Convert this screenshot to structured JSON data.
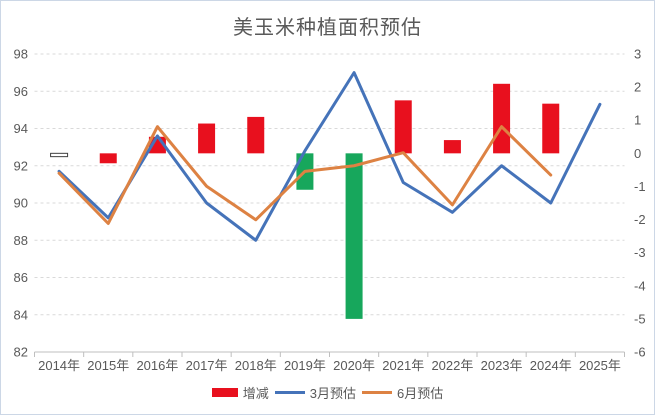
{
  "title": "美玉米种植面积预估",
  "legend": {
    "items": [
      {
        "label": "增减",
        "marker": "bar",
        "color": "#e8101e"
      },
      {
        "label": "3月预估",
        "marker": "line",
        "color": "#4573b9"
      },
      {
        "label": "6月预估",
        "marker": "line",
        "color": "#dd8243"
      }
    ]
  },
  "chart_data": {
    "type": "combo-bar-line",
    "title": "美玉米种植面积预估",
    "categories": [
      "2014年",
      "2015年",
      "2016年",
      "2017年",
      "2018年",
      "2019年",
      "2020年",
      "2021年",
      "2022年",
      "2023年",
      "2024年",
      "2025年"
    ],
    "series": [
      {
        "name": "增减",
        "type": "bar",
        "axis": "right",
        "values": [
          -0.1,
          -0.3,
          0.5,
          0.9,
          1.1,
          -1.1,
          -5.0,
          1.6,
          0.4,
          2.1,
          1.5,
          null
        ],
        "fills": [
          "#ffffff",
          "#e8101e",
          "#e8101e",
          "#e8101e",
          "#e8101e",
          "#17a75c",
          "#17a75c",
          "#e8101e",
          "#e8101e",
          "#e8101e",
          "#e8101e",
          null
        ],
        "strokes": [
          "#404040",
          null,
          null,
          null,
          null,
          null,
          null,
          null,
          null,
          null,
          null,
          null
        ]
      },
      {
        "name": "3月预估",
        "type": "line",
        "axis": "left",
        "color": "#4573b9",
        "values": [
          91.7,
          89.2,
          93.6,
          90.0,
          88.0,
          92.8,
          97.0,
          91.1,
          89.5,
          92.0,
          90.0,
          95.3
        ]
      },
      {
        "name": "6月预估",
        "type": "line",
        "axis": "left",
        "color": "#dd8243",
        "values": [
          91.6,
          88.9,
          94.1,
          90.9,
          89.1,
          91.7,
          92.0,
          92.7,
          89.9,
          94.1,
          91.5,
          null
        ]
      }
    ],
    "left_axis": {
      "min": 82,
      "max": 98,
      "ticks": [
        98,
        96,
        94,
        92,
        90,
        88,
        86,
        84,
        82
      ]
    },
    "right_axis": {
      "min": -6,
      "max": 3,
      "ticks": [
        3,
        2,
        1,
        0,
        -1,
        -2,
        -3,
        -4,
        -5,
        -6
      ]
    },
    "grid": "horizontal-dashed",
    "legend_position": "bottom"
  },
  "colors": {
    "grid": "#d9d9d9",
    "axis": "#bfbfbf",
    "text": "#595959",
    "background": "#ffffff",
    "border": "#ccd7e6"
  }
}
